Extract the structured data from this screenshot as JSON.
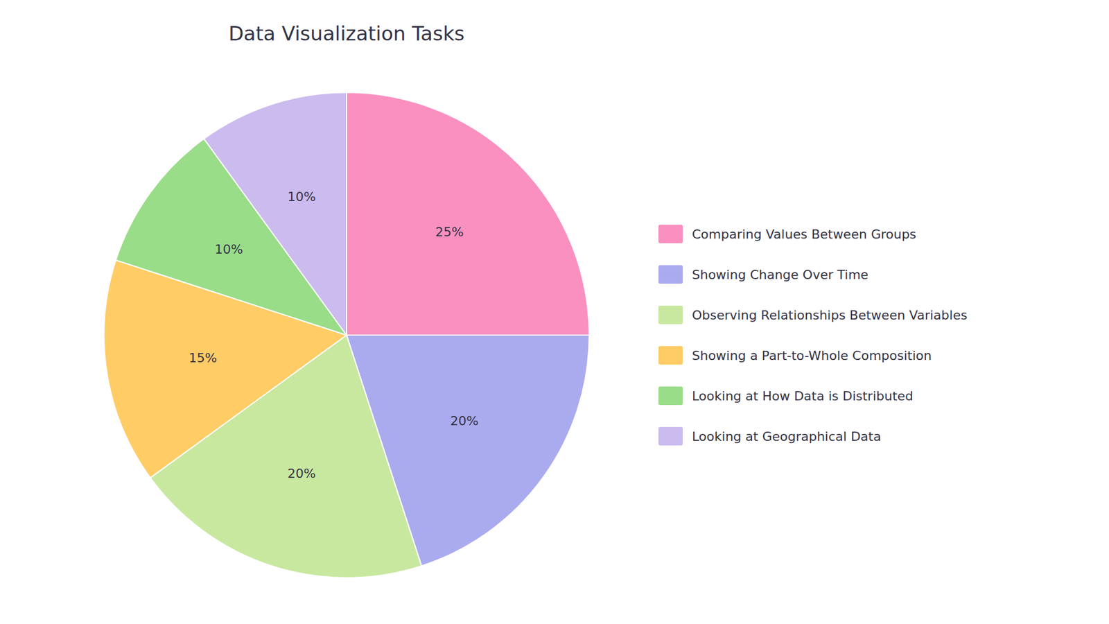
{
  "chart_data": {
    "type": "pie",
    "title": "Data Visualization Tasks",
    "categories": [
      "Comparing Values Between Groups",
      "Showing Change Over Time",
      "Observing Relationships Between Variables",
      "Showing a Part-to-Whole Composition",
      "Looking at How Data is Distributed",
      "Looking at Geographical Data"
    ],
    "values": [
      25,
      20,
      20,
      15,
      10,
      10
    ],
    "value_labels": [
      "25%",
      "20%",
      "20%",
      "15%",
      "10%",
      "10%"
    ],
    "colors": [
      "#F990C0",
      "#AAAAEE",
      "#C8E8A0",
      "#FFCC66",
      "#99DD88",
      "#CCBBEE"
    ],
    "data_labels": true,
    "legend": "right"
  }
}
